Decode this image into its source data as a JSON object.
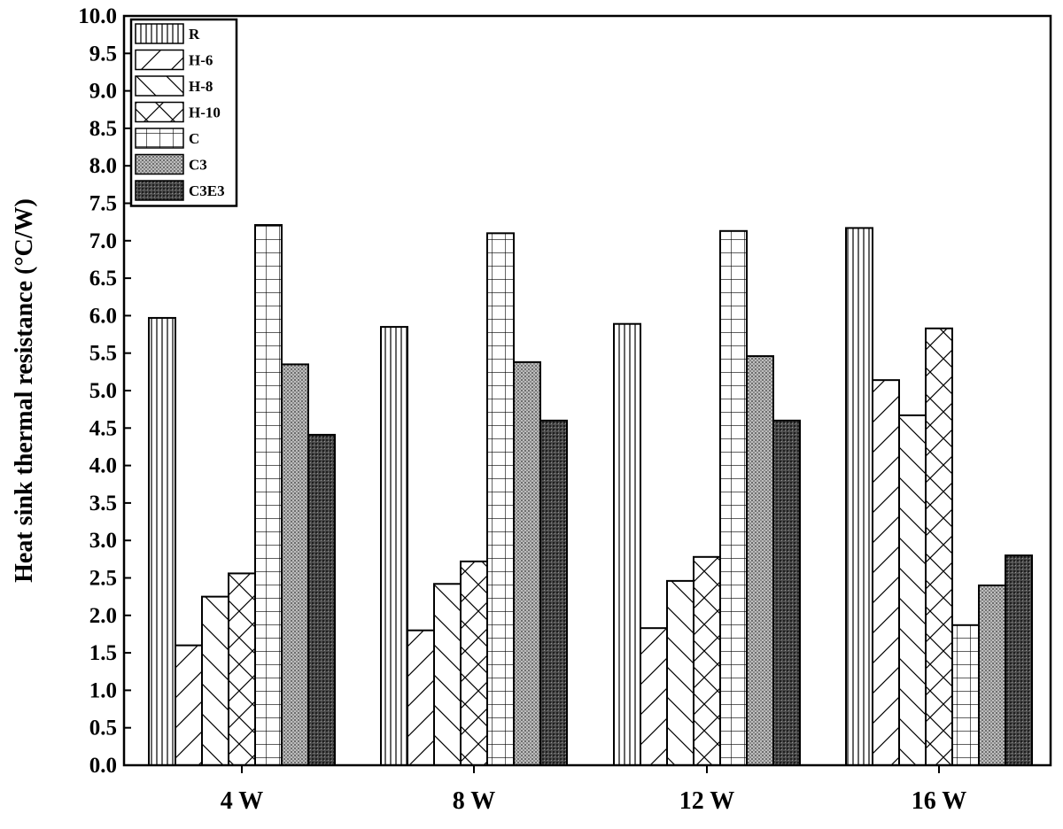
{
  "chart_data": {
    "type": "bar",
    "title": "",
    "xlabel": "",
    "ylabel": "Heat sink thermal resistance (°C/W)",
    "ylim": [
      0,
      10
    ],
    "yticks": [
      "0.0",
      "0.5",
      "1.0",
      "1.5",
      "2.0",
      "2.5",
      "3.0",
      "3.5",
      "4.0",
      "4.5",
      "5.0",
      "5.5",
      "6.0",
      "6.5",
      "7.0",
      "7.5",
      "8.0",
      "8.5",
      "9.0",
      "9.5",
      "10.0"
    ],
    "categories": [
      "4 W",
      "8 W",
      "12 W",
      "16 W"
    ],
    "legend_position": "top-left",
    "grid": false,
    "series": [
      {
        "name": "R",
        "pattern": "vertical-lines",
        "values": [
          5.97,
          5.85,
          5.89,
          7.17
        ]
      },
      {
        "name": "H-6",
        "pattern": "forward-diagonal",
        "values": [
          1.6,
          1.8,
          1.83,
          5.14
        ]
      },
      {
        "name": "H-8",
        "pattern": "backward-diagonal",
        "values": [
          2.25,
          2.42,
          2.46,
          4.67
        ]
      },
      {
        "name": "H-10",
        "pattern": "cross-diagonal",
        "values": [
          2.56,
          2.72,
          2.78,
          5.83
        ]
      },
      {
        "name": "C",
        "pattern": "grid",
        "values": [
          7.21,
          7.1,
          7.13,
          1.87
        ]
      },
      {
        "name": "C3",
        "pattern": "dense-grey",
        "values": [
          5.35,
          5.38,
          5.46,
          2.4
        ]
      },
      {
        "name": "C3E3",
        "pattern": "dark-dots",
        "values": [
          4.41,
          4.6,
          4.6,
          2.8
        ]
      }
    ]
  }
}
